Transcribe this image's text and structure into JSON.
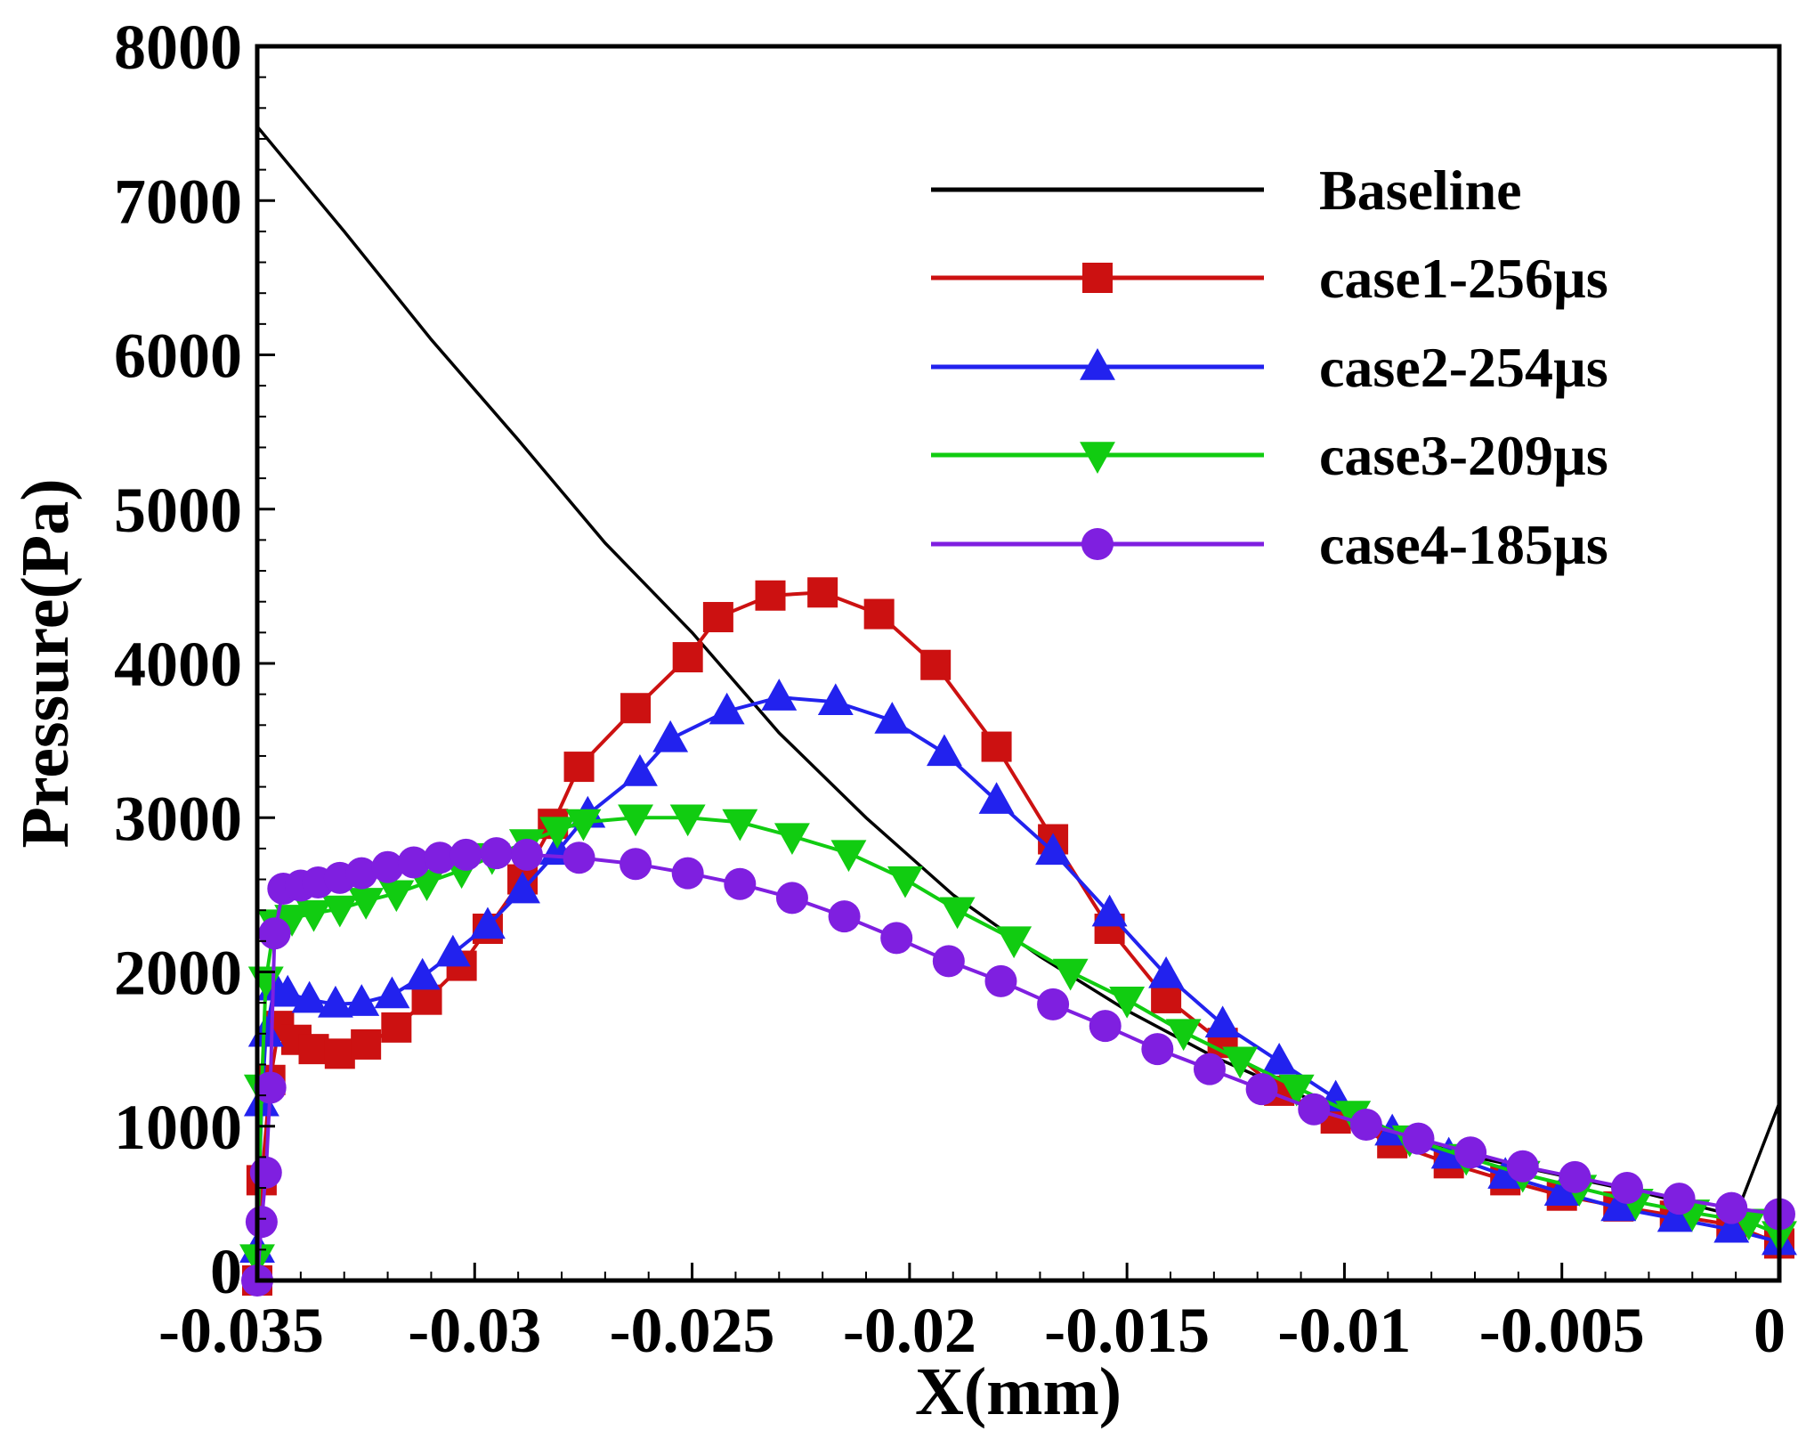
{
  "chart_data": {
    "type": "line",
    "title": "",
    "xlabel": "X(mm)",
    "ylabel": "Pressure(Pa)",
    "xlim": [
      -0.035,
      0
    ],
    "ylim": [
      0,
      8000
    ],
    "xticks": [
      -0.035,
      -0.03,
      -0.025,
      -0.02,
      -0.015,
      -0.01,
      -0.005,
      0
    ],
    "xtick_labels": [
      "-0.035",
      "-0.03",
      "-0.025",
      "-0.02",
      "-0.015",
      "-0.01",
      "-0.005",
      "0"
    ],
    "yticks": [
      0,
      1000,
      2000,
      3000,
      4000,
      5000,
      6000,
      7000,
      8000
    ],
    "ytick_labels": [
      "0",
      "1000",
      "2000",
      "3000",
      "4000",
      "5000",
      "6000",
      "7000",
      "8000"
    ],
    "grid": false,
    "legend_position": "top-right",
    "series": [
      {
        "name": "Baseline",
        "color": "#000000",
        "marker": "none",
        "x": [
          -0.035,
          -0.033,
          -0.031,
          -0.029,
          -0.027,
          -0.025,
          -0.023,
          -0.021,
          -0.019,
          -0.017,
          -0.015,
          -0.013,
          -0.011,
          -0.009,
          -0.007,
          -0.005,
          -0.003,
          -0.001,
          0
        ],
        "y": [
          7480,
          6800,
          6100,
          5450,
          4780,
          4200,
          3550,
          3000,
          2500,
          2100,
          1750,
          1450,
          1200,
          950,
          800,
          680,
          560,
          420,
          1150
        ]
      },
      {
        "name": "case1-256µs",
        "color": "#cc1111",
        "marker": "square",
        "x": [
          -0.035,
          -0.0349,
          -0.0347,
          -0.0345,
          -0.0341,
          -0.0337,
          -0.0331,
          -0.0325,
          -0.0318,
          -0.0311,
          -0.0303,
          -0.0297,
          -0.0289,
          -0.0282,
          -0.0276,
          -0.0263,
          -0.0251,
          -0.0244,
          -0.0232,
          -0.022,
          -0.0207,
          -0.0194,
          -0.018,
          -0.0167,
          -0.0154,
          -0.0141,
          -0.0128,
          -0.0115,
          -0.0102,
          -0.0089,
          -0.0076,
          -0.0063,
          -0.005,
          -0.0037,
          -0.0024,
          -0.0011,
          0
        ],
        "y": [
          0,
          650,
          1300,
          1650,
          1560,
          1500,
          1470,
          1530,
          1640,
          1820,
          2040,
          2280,
          2600,
          2960,
          3330,
          3710,
          4040,
          4300,
          4440,
          4460,
          4320,
          3990,
          3460,
          2860,
          2280,
          1830,
          1540,
          1230,
          1050,
          890,
          760,
          650,
          550,
          480,
          420,
          360,
          240
        ]
      },
      {
        "name": "case2-254µs",
        "color": "#2222ee",
        "marker": "triangle-up",
        "x": [
          -0.035,
          -0.0349,
          -0.0348,
          -0.0346,
          -0.0343,
          -0.0338,
          -0.0332,
          -0.0326,
          -0.0319,
          -0.0312,
          -0.0305,
          -0.0297,
          -0.0289,
          -0.0281,
          -0.0274,
          -0.0262,
          -0.0255,
          -0.0242,
          -0.023,
          -0.0217,
          -0.0204,
          -0.0192,
          -0.018,
          -0.0167,
          -0.0154,
          -0.0141,
          -0.0128,
          -0.0115,
          -0.0102,
          -0.0089,
          -0.0076,
          -0.0063,
          -0.005,
          -0.0037,
          -0.0024,
          -0.0011,
          0
        ],
        "y": [
          200,
          1150,
          1600,
          1900,
          1860,
          1820,
          1790,
          1800,
          1850,
          1970,
          2120,
          2300,
          2530,
          2780,
          3020,
          3290,
          3510,
          3690,
          3780,
          3750,
          3630,
          3420,
          3110,
          2780,
          2380,
          1980,
          1660,
          1420,
          1180,
          960,
          810,
          680,
          570,
          470,
          400,
          330,
          250
        ]
      },
      {
        "name": "case3-209µs",
        "color": "#11cc11",
        "marker": "triangle-down",
        "x": [
          -0.035,
          -0.0349,
          -0.0348,
          -0.0346,
          -0.0342,
          -0.0337,
          -0.0331,
          -0.0325,
          -0.0318,
          -0.0311,
          -0.0303,
          -0.0296,
          -0.0288,
          -0.0281,
          -0.0275,
          -0.0263,
          -0.0251,
          -0.0239,
          -0.0227,
          -0.0214,
          -0.0201,
          -0.0189,
          -0.0176,
          -0.0163,
          -0.015,
          -0.0137,
          -0.0124,
          -0.0111,
          -0.0098,
          -0.0085,
          -0.0072,
          -0.0059,
          -0.0046,
          -0.0033,
          -0.002,
          -0.0007,
          0
        ],
        "y": [
          150,
          1250,
          1950,
          2320,
          2350,
          2380,
          2410,
          2460,
          2510,
          2580,
          2660,
          2750,
          2840,
          2920,
          2970,
          3000,
          3000,
          2970,
          2880,
          2770,
          2600,
          2400,
          2210,
          2000,
          1820,
          1610,
          1430,
          1250,
          1080,
          920,
          800,
          690,
          600,
          510,
          440,
          380,
          300
        ]
      },
      {
        "name": "case4-185µs",
        "color": "#7f1fe0",
        "marker": "circle",
        "x": [
          -0.035,
          -0.0349,
          -0.0348,
          -0.0347,
          -0.0346,
          -0.0344,
          -0.034,
          -0.0336,
          -0.0331,
          -0.0326,
          -0.032,
          -0.0314,
          -0.0308,
          -0.0302,
          -0.0295,
          -0.0288,
          -0.0276,
          -0.0263,
          -0.0251,
          -0.0239,
          -0.0227,
          -0.0215,
          -0.0203,
          -0.0191,
          -0.0179,
          -0.0167,
          -0.0155,
          -0.0143,
          -0.0131,
          -0.0119,
          -0.0107,
          -0.0095,
          -0.0083,
          -0.0071,
          -0.0059,
          -0.0047,
          -0.0035,
          -0.0023,
          -0.0011,
          0
        ],
        "y": [
          0,
          380,
          700,
          1250,
          2250,
          2540,
          2560,
          2580,
          2610,
          2640,
          2680,
          2710,
          2740,
          2760,
          2770,
          2760,
          2740,
          2700,
          2640,
          2570,
          2480,
          2360,
          2220,
          2070,
          1940,
          1790,
          1650,
          1500,
          1370,
          1240,
          1110,
          1010,
          920,
          830,
          740,
          670,
          600,
          530,
          470,
          430
        ]
      }
    ]
  }
}
